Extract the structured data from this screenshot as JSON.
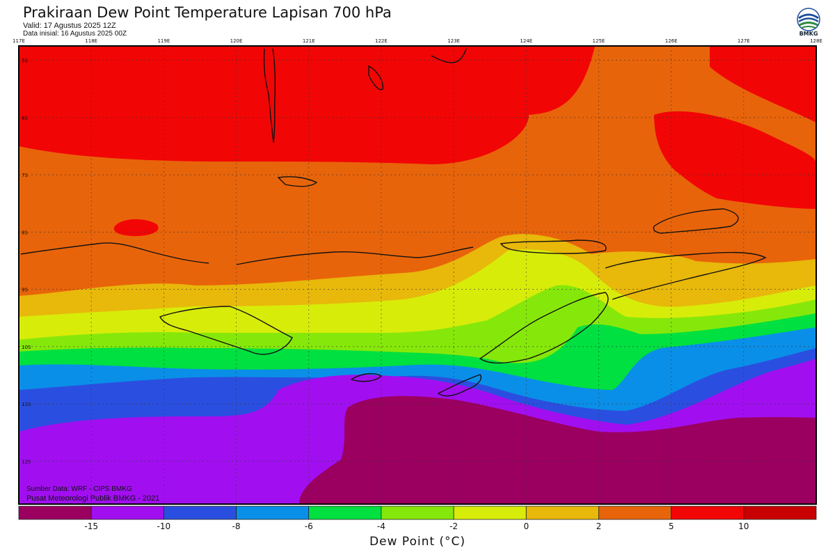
{
  "header": {
    "title": "Prakiraan Dew Point Temperature Lapisan 700 hPa",
    "valid": "Valid: 17 Agustus 2025 12Z",
    "initial": "Data inisial: 16 Agustus 2025 00Z"
  },
  "logo": {
    "text": "BMKG",
    "icon": "bmkg-logo-icon"
  },
  "credits": {
    "source": "Sumber Data: WRF - CIPS BMKG",
    "org": "Pusat Meteorologi Publik BMKG - 2021"
  },
  "map": {
    "lon_labels": [
      "117E",
      "118E",
      "119E",
      "120E",
      "121E",
      "122E",
      "123E",
      "124E",
      "125E",
      "126E",
      "127E",
      "128E"
    ],
    "lat_labels": [
      "5S",
      "6S",
      "7S",
      "8S",
      "9S",
      "10S",
      "11S",
      "12S"
    ],
    "grid": true,
    "extent": {
      "lon": [
        117,
        128
      ],
      "lat": [
        -4.75,
        -12.75
      ]
    }
  },
  "colorbar": {
    "title": "Dew Point (°C)",
    "tick_labels": [
      "-15",
      "-10",
      "-8",
      "-6",
      "-4",
      "-2",
      "0",
      "2",
      "5",
      "10"
    ],
    "colors": [
      "#9b0060",
      "#a10ff0",
      "#2a4fe0",
      "#0a8fe8",
      "#00e040",
      "#86e80a",
      "#d8ec0a",
      "#e8b80a",
      "#e8640a",
      "#f20505",
      "#c80000"
    ]
  }
}
